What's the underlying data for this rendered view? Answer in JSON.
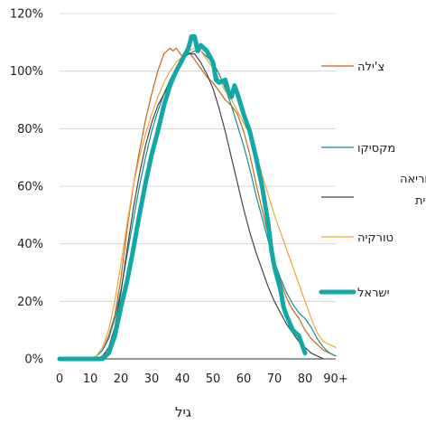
{
  "chart_data": {
    "type": "line",
    "xlabel": "גיל",
    "ylabel": "",
    "xlim": [
      0,
      90
    ],
    "ylim": [
      0,
      120
    ],
    "x_ticks": [
      "0",
      "10",
      "20",
      "30",
      "40",
      "50",
      "60",
      "70",
      "80",
      "90+"
    ],
    "y_ticks": [
      "0%",
      "20%",
      "40%",
      "60%",
      "80%",
      "100%",
      "120%"
    ],
    "grid": "horizontal",
    "legend_position": "right",
    "series": [
      {
        "name": "צ'ילה",
        "color": "#c8651b",
        "width": 1.2,
        "points": [
          [
            0,
            0
          ],
          [
            5,
            0
          ],
          [
            10,
            0
          ],
          [
            12,
            1
          ],
          [
            14,
            3
          ],
          [
            16,
            8
          ],
          [
            18,
            15
          ],
          [
            20,
            28
          ],
          [
            22,
            45
          ],
          [
            24,
            60
          ],
          [
            26,
            72
          ],
          [
            28,
            83
          ],
          [
            30,
            92
          ],
          [
            32,
            100
          ],
          [
            34,
            106
          ],
          [
            36,
            108
          ],
          [
            37,
            107
          ],
          [
            38,
            108
          ],
          [
            40,
            105
          ],
          [
            42,
            107
          ],
          [
            44,
            104
          ],
          [
            46,
            101
          ],
          [
            48,
            98
          ],
          [
            50,
            96
          ],
          [
            52,
            93
          ],
          [
            54,
            90
          ],
          [
            56,
            88
          ],
          [
            58,
            85
          ],
          [
            60,
            79
          ],
          [
            62,
            71
          ],
          [
            64,
            61
          ],
          [
            66,
            52
          ],
          [
            68,
            43
          ],
          [
            70,
            34
          ],
          [
            72,
            27
          ],
          [
            74,
            21
          ],
          [
            76,
            17
          ],
          [
            78,
            14
          ],
          [
            80,
            10
          ],
          [
            82,
            7
          ],
          [
            84,
            5
          ],
          [
            86,
            3
          ],
          [
            88,
            2
          ],
          [
            90,
            1
          ]
        ]
      },
      {
        "name": "מקסיקו",
        "color": "#1a8a8f",
        "width": 1.2,
        "points": [
          [
            0,
            0
          ],
          [
            5,
            0
          ],
          [
            10,
            0
          ],
          [
            12,
            1
          ],
          [
            14,
            3
          ],
          [
            16,
            7
          ],
          [
            18,
            14
          ],
          [
            20,
            24
          ],
          [
            22,
            36
          ],
          [
            24,
            48
          ],
          [
            26,
            60
          ],
          [
            28,
            70
          ],
          [
            30,
            79
          ],
          [
            32,
            86
          ],
          [
            34,
            92
          ],
          [
            36,
            97
          ],
          [
            38,
            101
          ],
          [
            40,
            104
          ],
          [
            42,
            106
          ],
          [
            44,
            107
          ],
          [
            46,
            107
          ],
          [
            48,
            105
          ],
          [
            50,
            103
          ],
          [
            52,
            99
          ],
          [
            54,
            94
          ],
          [
            56,
            88
          ],
          [
            58,
            81
          ],
          [
            60,
            74
          ],
          [
            62,
            66
          ],
          [
            64,
            57
          ],
          [
            66,
            49
          ],
          [
            68,
            41
          ],
          [
            70,
            34
          ],
          [
            72,
            28
          ],
          [
            74,
            23
          ],
          [
            76,
            19
          ],
          [
            78,
            16
          ],
          [
            80,
            14
          ],
          [
            82,
            11
          ],
          [
            84,
            7
          ],
          [
            86,
            4
          ],
          [
            88,
            2
          ],
          [
            90,
            1
          ]
        ]
      },
      {
        "name": "קוריאה הדרומית",
        "color": "#444444",
        "width": 1.2,
        "points": [
          [
            0,
            0
          ],
          [
            5,
            0
          ],
          [
            10,
            0
          ],
          [
            12,
            0
          ],
          [
            14,
            1
          ],
          [
            16,
            4
          ],
          [
            18,
            11
          ],
          [
            20,
            23
          ],
          [
            22,
            38
          ],
          [
            24,
            52
          ],
          [
            26,
            64
          ],
          [
            28,
            74
          ],
          [
            30,
            82
          ],
          [
            32,
            88
          ],
          [
            34,
            92
          ],
          [
            36,
            96
          ],
          [
            38,
            100
          ],
          [
            40,
            104
          ],
          [
            42,
            106
          ],
          [
            44,
            106
          ],
          [
            46,
            103
          ],
          [
            48,
            99
          ],
          [
            50,
            94
          ],
          [
            52,
            87
          ],
          [
            54,
            79
          ],
          [
            56,
            70
          ],
          [
            58,
            61
          ],
          [
            60,
            52
          ],
          [
            62,
            44
          ],
          [
            64,
            37
          ],
          [
            66,
            31
          ],
          [
            68,
            25
          ],
          [
            70,
            20
          ],
          [
            72,
            16
          ],
          [
            74,
            12
          ],
          [
            76,
            9
          ],
          [
            78,
            6
          ],
          [
            80,
            4
          ],
          [
            82,
            2
          ],
          [
            84,
            1
          ],
          [
            86,
            0
          ]
        ]
      },
      {
        "name": "טורקיה",
        "color": "#f0a73a",
        "width": 1.2,
        "points": [
          [
            0,
            0
          ],
          [
            5,
            0
          ],
          [
            10,
            0
          ],
          [
            12,
            1
          ],
          [
            14,
            4
          ],
          [
            16,
            10
          ],
          [
            18,
            20
          ],
          [
            20,
            33
          ],
          [
            22,
            47
          ],
          [
            24,
            60
          ],
          [
            26,
            70
          ],
          [
            28,
            78
          ],
          [
            30,
            85
          ],
          [
            32,
            91
          ],
          [
            34,
            96
          ],
          [
            36,
            100
          ],
          [
            38,
            103
          ],
          [
            40,
            105
          ],
          [
            42,
            107
          ],
          [
            44,
            108
          ],
          [
            46,
            107
          ],
          [
            48,
            104
          ],
          [
            50,
            101
          ],
          [
            52,
            97
          ],
          [
            54,
            93
          ],
          [
            56,
            90
          ],
          [
            58,
            86
          ],
          [
            60,
            82
          ],
          [
            62,
            78
          ],
          [
            64,
            72
          ],
          [
            66,
            64
          ],
          [
            68,
            57
          ],
          [
            70,
            50
          ],
          [
            72,
            44
          ],
          [
            74,
            38
          ],
          [
            76,
            32
          ],
          [
            78,
            26
          ],
          [
            80,
            20
          ],
          [
            82,
            14
          ],
          [
            84,
            9
          ],
          [
            86,
            6
          ],
          [
            88,
            5
          ],
          [
            90,
            4
          ]
        ]
      },
      {
        "name": "ישראל",
        "color": "#13a8a8",
        "width": 5,
        "points": [
          [
            0,
            0
          ],
          [
            5,
            0
          ],
          [
            10,
            0
          ],
          [
            12,
            0
          ],
          [
            14,
            0
          ],
          [
            16,
            2
          ],
          [
            18,
            8
          ],
          [
            20,
            18
          ],
          [
            22,
            27
          ],
          [
            24,
            38
          ],
          [
            26,
            50
          ],
          [
            28,
            61
          ],
          [
            30,
            71
          ],
          [
            32,
            79
          ],
          [
            34,
            88
          ],
          [
            36,
            95
          ],
          [
            38,
            100
          ],
          [
            40,
            104
          ],
          [
            42,
            108
          ],
          [
            43,
            112
          ],
          [
            44,
            112
          ],
          [
            45,
            107
          ],
          [
            46,
            109
          ],
          [
            48,
            107
          ],
          [
            50,
            103
          ],
          [
            51,
            97
          ],
          [
            52,
            96
          ],
          [
            54,
            97
          ],
          [
            55,
            93
          ],
          [
            56,
            91
          ],
          [
            57,
            95
          ],
          [
            58,
            92
          ],
          [
            60,
            85
          ],
          [
            62,
            79
          ],
          [
            64,
            70
          ],
          [
            66,
            60
          ],
          [
            68,
            47
          ],
          [
            69,
            38
          ],
          [
            70,
            32
          ],
          [
            72,
            24
          ],
          [
            73,
            18
          ],
          [
            74,
            15
          ],
          [
            76,
            10
          ],
          [
            78,
            8
          ],
          [
            80,
            2
          ]
        ]
      }
    ]
  }
}
